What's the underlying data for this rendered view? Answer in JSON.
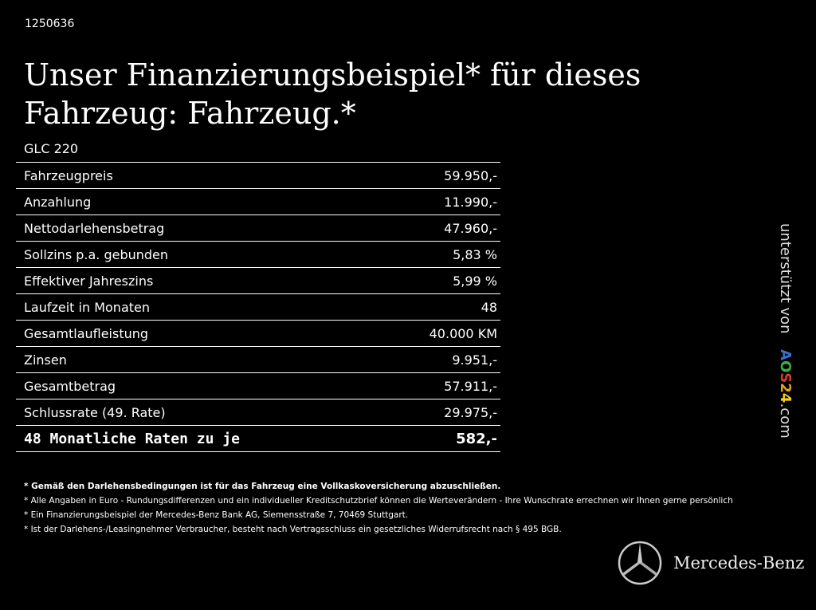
{
  "id": "1250636",
  "title": "Unser Finanzierungsbeispiel* für dieses Fahrzeug: Fahrzeug.*",
  "model": "GLC 220",
  "rows": [
    {
      "label": "Fahrzeugpreis",
      "value": "59.950,-"
    },
    {
      "label": "Anzahlung",
      "value": "11.990,-"
    },
    {
      "label": "Nettodarlehensbetrag",
      "value": "47.960,-"
    },
    {
      "label": "Sollzins p.a. gebunden",
      "value": "5,83 %"
    },
    {
      "label": "Effektiver Jahreszins",
      "value": "5,99 %"
    },
    {
      "label": "Laufzeit in Monaten",
      "value": "48"
    },
    {
      "label": "Gesamtlaufleistung",
      "value": "40.000 KM"
    },
    {
      "label": "Zinsen",
      "value": "9.951,-"
    },
    {
      "label": "Gesamtbetrag",
      "value": "57.911,-"
    },
    {
      "label": "Schlussrate (49. Rate)",
      "value": "29.975,-"
    }
  ],
  "total": {
    "label": "48 Monatliche Raten zu je",
    "value": "582,-"
  },
  "notes": [
    "* Gemäß den Darlehensbedingungen ist für das Fahrzeug eine Vollkaskoversicherung abzuschließen.",
    "* Alle Angaben in Euro - Rundungsdifferenzen und ein individueller Kreditschutzbrief können die Werteverändern - Ihre Wunschrate errechnen wir Ihnen gerne persönlich",
    "* Ein Finanzierungsbeispiel der Mercedes-Benz Bank AG, Siemensstraße 7, 70469 Stuttgart.",
    "* Ist der Darlehens-/Leasingnehmer Verbraucher, besteht nach Vertragsschluss ein gesetzliches Widerrufsrecht nach § 495 BGB."
  ],
  "supported": {
    "prefix": "unterstützt von",
    "logo_letters": [
      "A",
      "O",
      "S",
      "2",
      "4"
    ],
    "logo_colors": [
      "#3a6fd0",
      "#3cae4a",
      "#d93a2b",
      "#e8a020",
      "#f0d020"
    ],
    "suffix": ".com"
  },
  "brand": "Mercedes-Benz"
}
